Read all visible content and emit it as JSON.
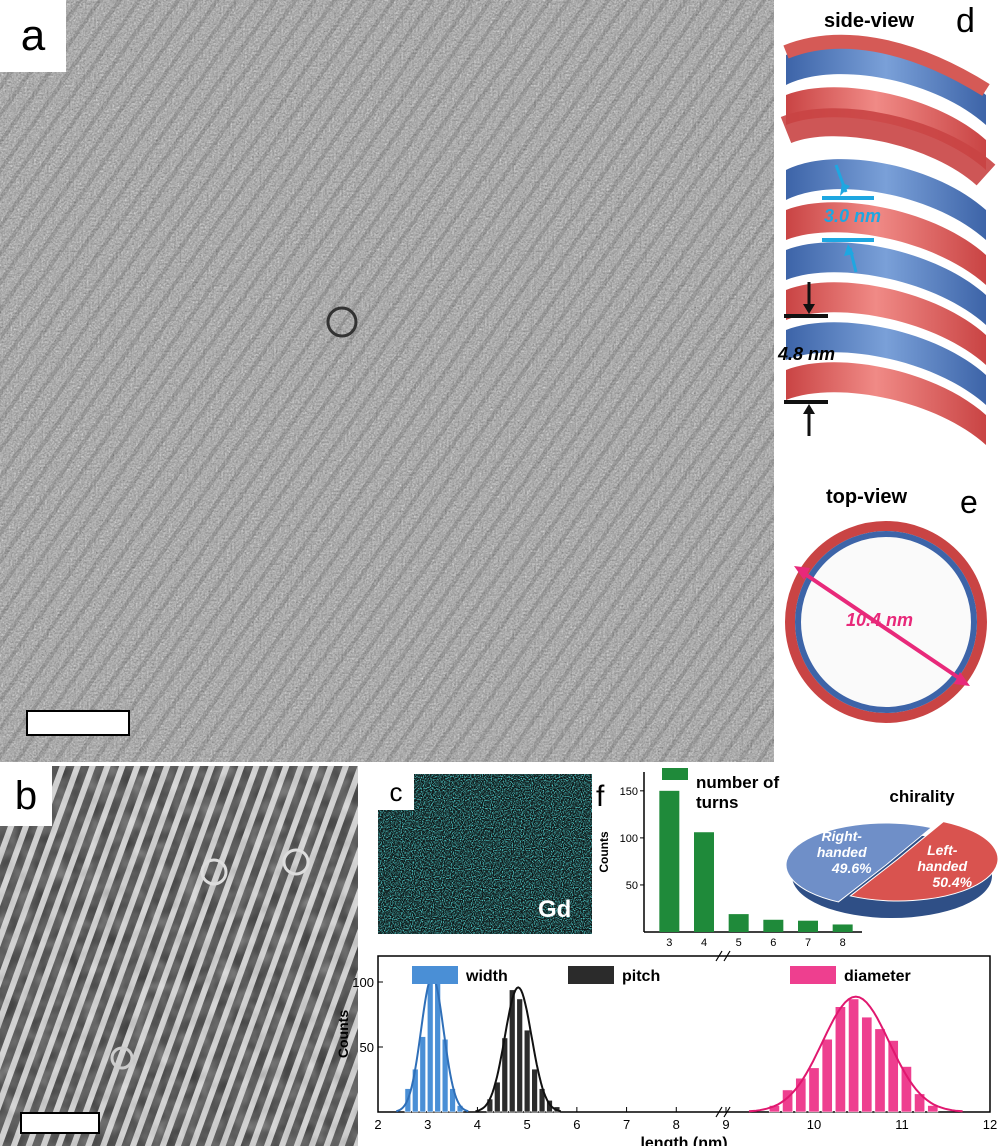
{
  "panels": {
    "a": {
      "label": "a"
    },
    "b": {
      "label": "b"
    },
    "c": {
      "label": "c",
      "element": "Gd"
    },
    "d": {
      "label": "d",
      "title": "side-view",
      "width_annotation": "3.0 nm",
      "pitch_annotation": "4.8 nm"
    },
    "e": {
      "label": "e",
      "title": "top-view",
      "diameter_annotation": "10.4 nm"
    },
    "f": {
      "label": "f"
    }
  },
  "colors": {
    "helix_outer": "#d9534f",
    "helix_inner": "#4a77b4",
    "width_blue": "#1ea7e1",
    "diameter_pink": "#e8297a",
    "turns_green": "#1f8a3a",
    "width_bar": "#4a8fd6",
    "pitch_bar": "#2b2b2b",
    "diameter_bar": "#ee3f8f"
  },
  "chart_data": [
    {
      "type": "bar",
      "title": "",
      "legend": [
        "number of turns"
      ],
      "xlabel": "",
      "ylabel": "Counts",
      "categories": [
        "3",
        "4",
        "5",
        "6",
        "7",
        "8"
      ],
      "values": [
        150,
        106,
        19,
        13,
        12,
        8
      ],
      "ylim": [
        0,
        170
      ],
      "yticks": [
        50,
        100,
        150
      ]
    },
    {
      "type": "pie",
      "title": "chirality",
      "slices": [
        {
          "label_line1": "Left-",
          "label_line2": "handed",
          "pct_label": "50.4%",
          "value": 50.4
        },
        {
          "label_line1": "Right-",
          "label_line2": "handed",
          "pct_label": "49.6%",
          "value": 49.6
        }
      ]
    },
    {
      "type": "bar",
      "title": "",
      "xlabel": "length (nm)",
      "ylabel": "Counts",
      "yticks": [
        50,
        100
      ],
      "ylim": [
        0,
        120
      ],
      "x_ticks_left": [
        "2",
        "3",
        "4",
        "5",
        "6",
        "7",
        "8",
        "9"
      ],
      "x_ticks_right": [
        "10",
        "11",
        "12"
      ],
      "series": [
        {
          "name": "width",
          "x": [
            2.6,
            2.75,
            2.9,
            3.05,
            3.2,
            3.35,
            3.5,
            3.65
          ],
          "values": [
            18,
            33,
            58,
            102,
            101,
            56,
            18,
            5
          ]
        },
        {
          "name": "pitch",
          "x": [
            4.25,
            4.4,
            4.55,
            4.7,
            4.85,
            5.0,
            5.15,
            5.3,
            5.45,
            5.6
          ],
          "values": [
            10,
            23,
            57,
            94,
            87,
            63,
            33,
            18,
            9,
            4
          ]
        },
        {
          "name": "diameter",
          "x": [
            9.55,
            9.7,
            9.85,
            10.0,
            10.15,
            10.3,
            10.45,
            10.6,
            10.75,
            10.9,
            11.05,
            11.2,
            11.35
          ],
          "values": [
            5,
            17,
            26,
            34,
            56,
            81,
            87,
            73,
            64,
            55,
            35,
            14,
            5
          ]
        }
      ]
    }
  ]
}
